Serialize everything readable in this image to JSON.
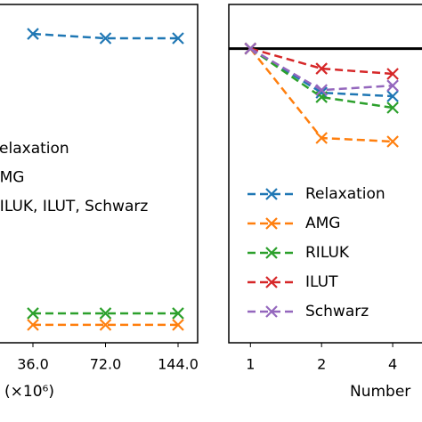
{
  "chart_data": [
    {
      "type": "line",
      "categories": [
        "36.0",
        "72.0",
        "144.0"
      ],
      "ylim": [
        0,
        1
      ],
      "xlabel": "(×10⁶)",
      "series": [
        {
          "name": "Relaxation",
          "color": "#1f77b4",
          "values": [
            0.913,
            0.9,
            0.9
          ]
        },
        {
          "name": "AMG",
          "color": "#ff7f0e",
          "values": [
            0.053,
            0.053,
            0.053
          ]
        },
        {
          "name": "RILUK, ILUT, Schwarz",
          "color": "#2ca02c",
          "values": [
            0.087,
            0.087,
            0.087
          ]
        }
      ]
    },
    {
      "type": "line",
      "x": [
        1,
        2,
        4
      ],
      "xscale": "log",
      "xlim": [
        0.81,
        8
      ],
      "xticks": [
        1,
        2,
        4
      ],
      "ylim": [
        0,
        1.15
      ],
      "hline": 1,
      "xlabel": "Number",
      "series": [
        {
          "name": "Relaxation",
          "color": "#1f77b4",
          "values": [
            1.0,
            0.85,
            0.838
          ]
        },
        {
          "name": "AMG",
          "color": "#ff7f0e",
          "values": [
            1.0,
            0.696,
            0.684
          ]
        },
        {
          "name": "RILUK",
          "color": "#2ca02c",
          "values": [
            1.0,
            0.835,
            0.799
          ]
        },
        {
          "name": "ILUT",
          "color": "#d62728",
          "values": [
            1.0,
            0.932,
            0.914
          ]
        },
        {
          "name": "Schwarz",
          "color": "#9467bd",
          "values": [
            1.0,
            0.859,
            0.874
          ]
        }
      ]
    }
  ]
}
